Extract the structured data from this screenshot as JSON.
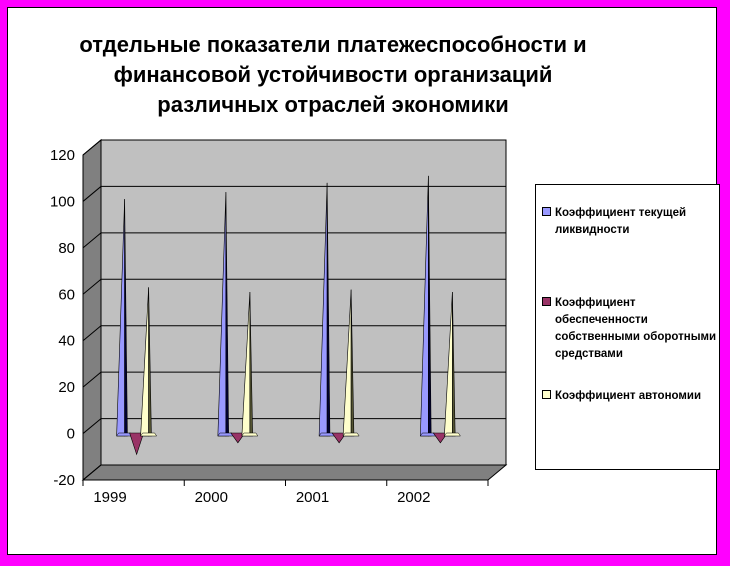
{
  "title_lines": [
    "отдельные показатели платежеспособности и",
    "финансовой устойчивости организаций",
    "различных отраслей экономики"
  ],
  "legend": [
    "Коэффициент текущей ликвидности",
    "Коэффициент обеспеченности собственными оборотными средствами",
    "Коэффициент автономии"
  ],
  "colors": {
    "frame": "#ff00ff",
    "wall": "#c0c0c0",
    "floor": "#808080",
    "series": [
      "#9999ff",
      "#993366",
      "#ffffcc"
    ]
  },
  "chart_data": {
    "type": "bar",
    "bar_shape": "3d-cone",
    "categories": [
      "1999",
      "2000",
      "2001",
      "2002"
    ],
    "series": [
      {
        "name": "Коэффициент текущей ликвидности",
        "values": [
          101,
          104,
          108,
          111
        ]
      },
      {
        "name": "Коэффициент обеспеченности собственными оборотными средствами",
        "values": [
          -9,
          -4,
          -4,
          -4
        ]
      },
      {
        "name": "Коэффициент автономии",
        "values": [
          63,
          61,
          62,
          61
        ]
      }
    ],
    "yticks": [
      "120",
      "100",
      "80",
      "60",
      "40",
      "20",
      "0",
      "-20"
    ],
    "ylim": [
      -20,
      120
    ],
    "grid": true,
    "legend_position": "right"
  }
}
